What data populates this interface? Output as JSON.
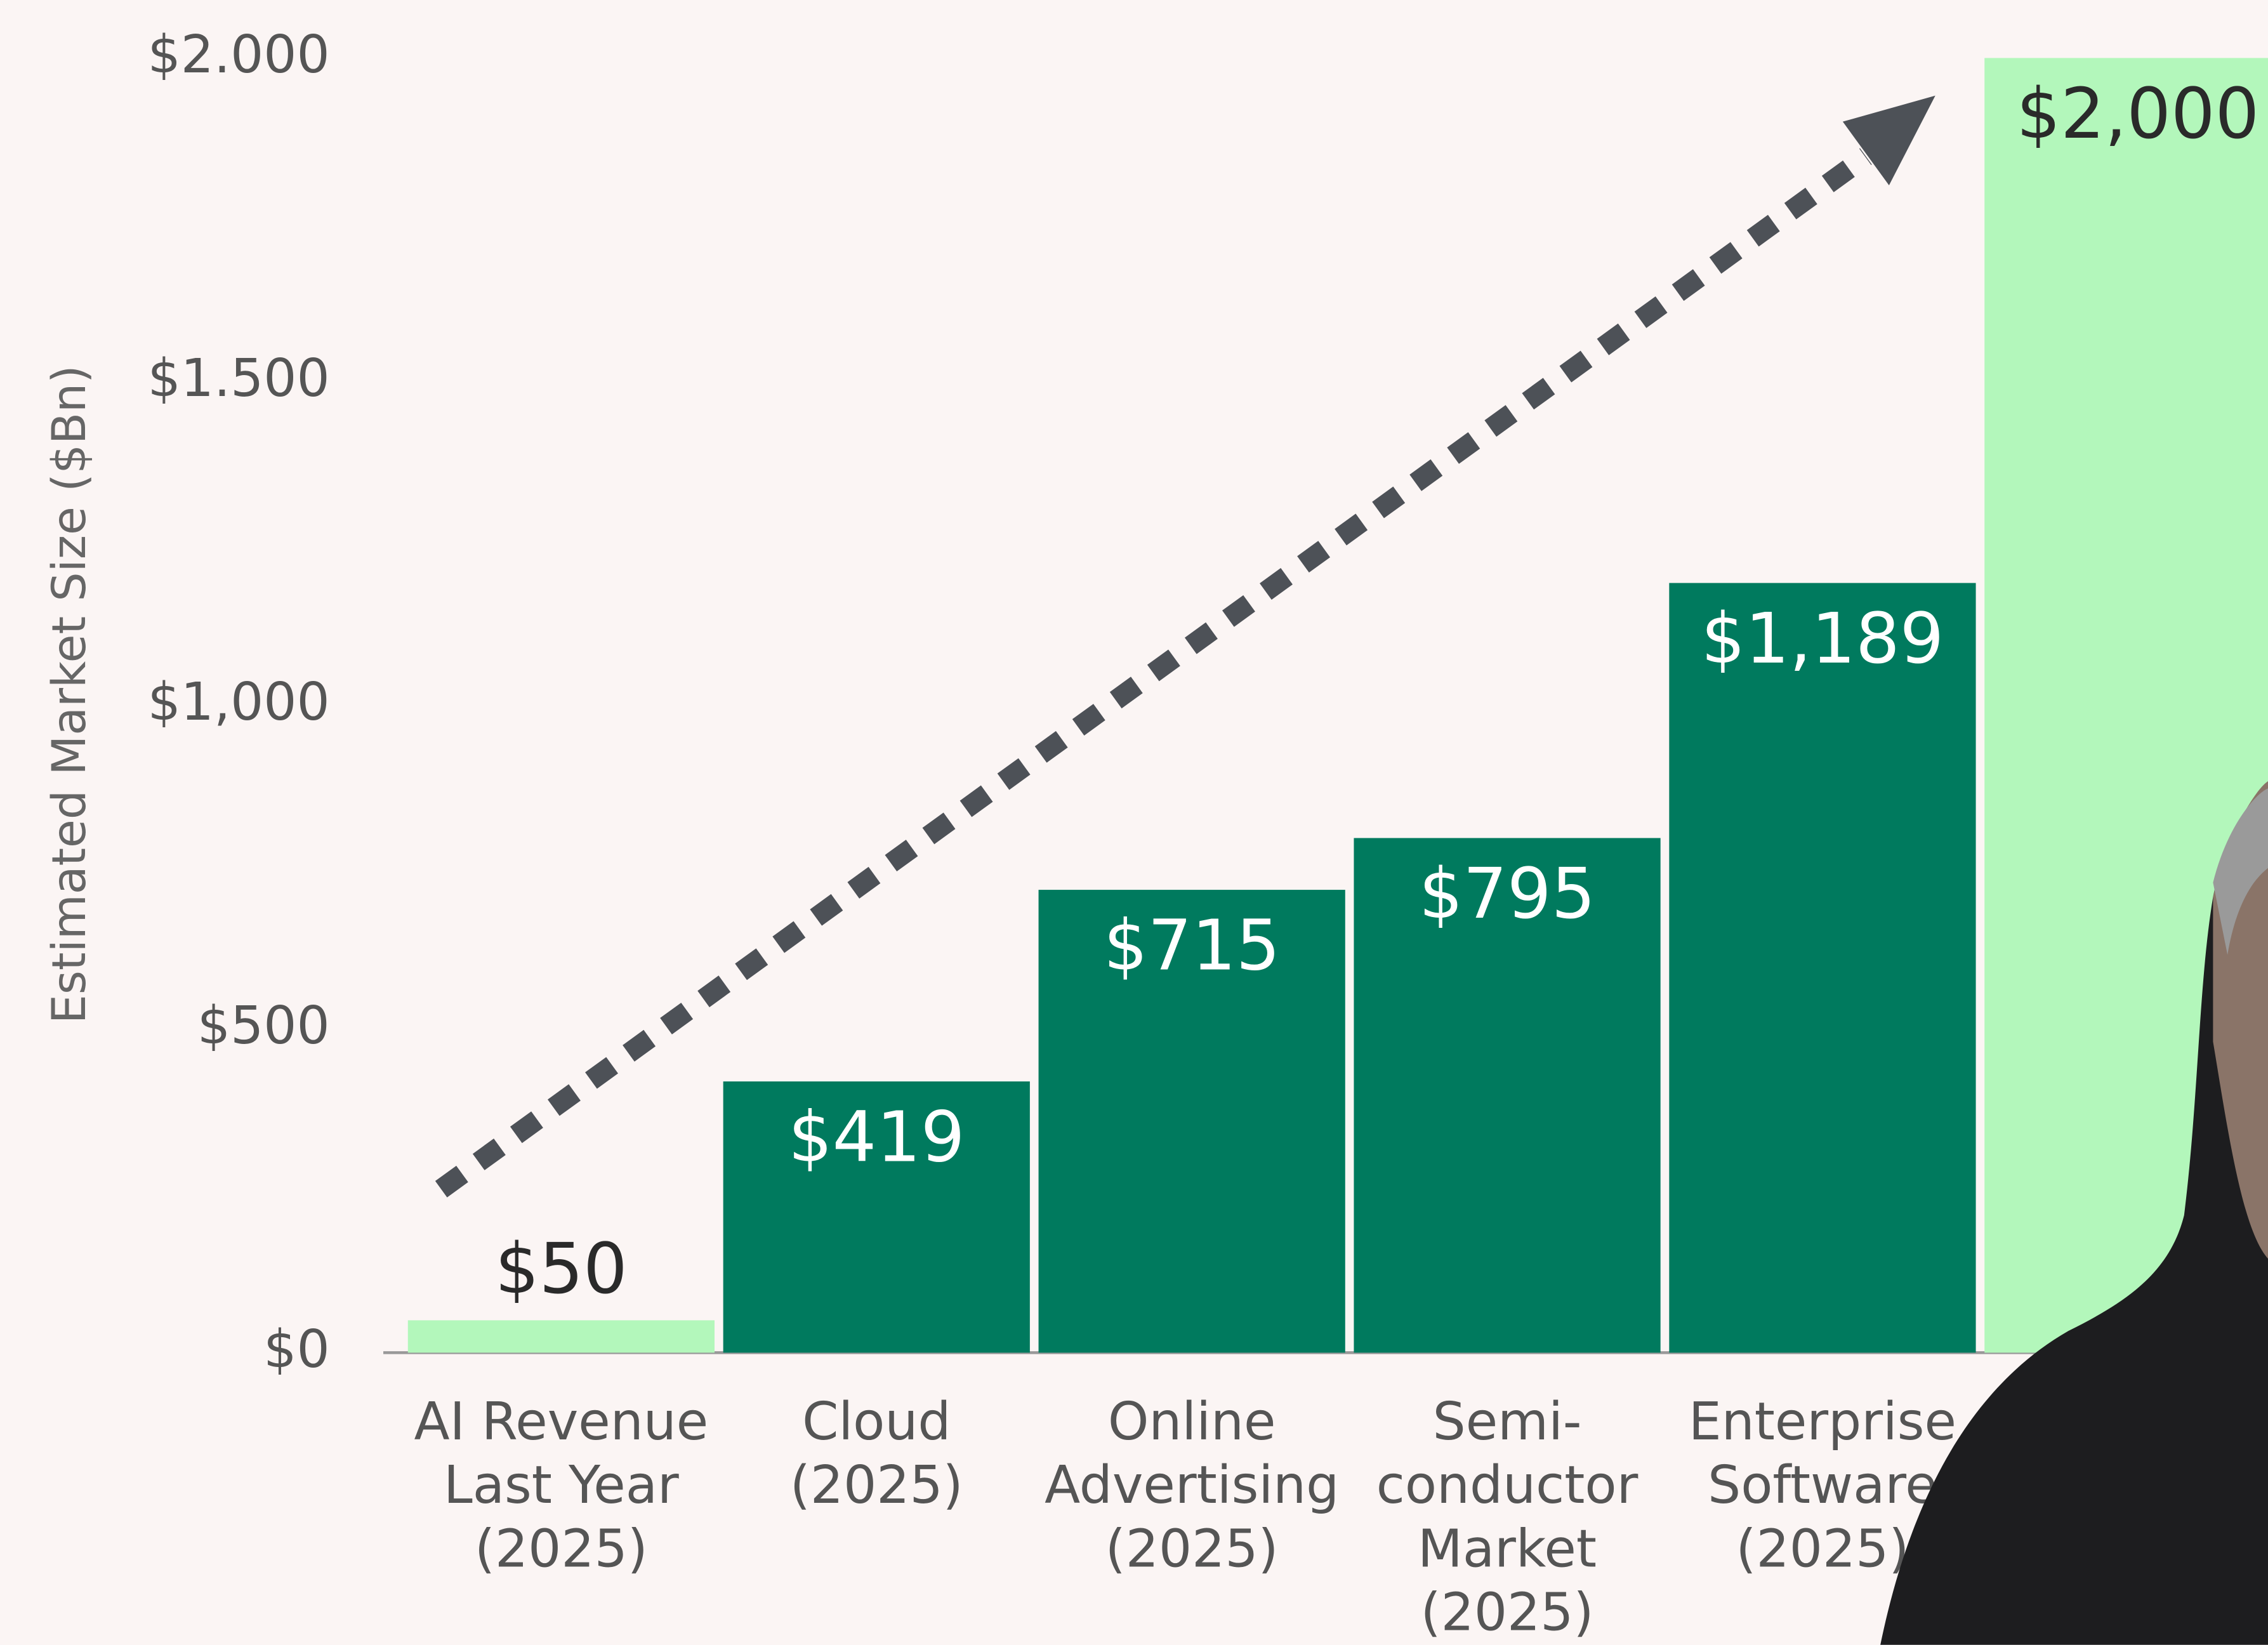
{
  "chart_data": {
    "type": "bar",
    "y_label": "Estimated Market Size ($Bn)",
    "categories": [
      [
        "AI Revenue",
        "Last Year",
        "(2025)"
      ],
      [
        "Cloud",
        "(2025)"
      ],
      [
        "Online",
        "Advertising",
        "(2025)"
      ],
      [
        "Semi-",
        "conductor",
        "Market",
        "(2025)"
      ],
      [
        "Enterprise",
        "Software",
        "(2025)"
      ],
      null
    ],
    "values": [
      50,
      419,
      715,
      795,
      1189,
      2000
    ],
    "value_labels": [
      "$50",
      "$419",
      "$715",
      "$795",
      "$1,189",
      "$2,000"
    ],
    "colors": [
      "#b3f7bb",
      "#007a5e",
      "#007a5e",
      "#007a5e",
      "#007a5e",
      "#b3f7bb"
    ],
    "ylim": [
      0,
      2000
    ],
    "yticks": [
      {
        "value": 0,
        "label": "$0"
      },
      {
        "value": 500,
        "label": "$500"
      },
      {
        "value": 1000,
        "label": "$1,000"
      },
      {
        "value": 1500,
        "label": "$1.500"
      },
      {
        "value": 2000,
        "label": "$2.000"
      }
    ]
  }
}
